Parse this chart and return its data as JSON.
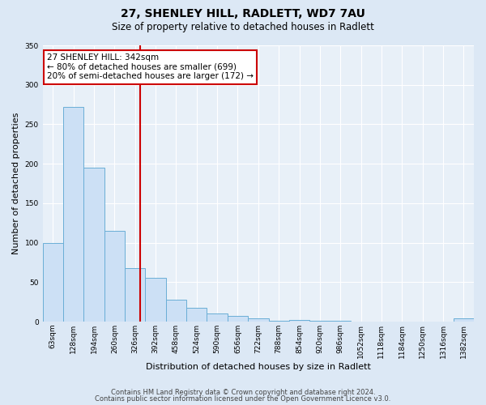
{
  "title": "27, SHENLEY HILL, RADLETT, WD7 7AU",
  "subtitle": "Size of property relative to detached houses in Radlett",
  "xlabel": "Distribution of detached houses by size in Radlett",
  "ylabel": "Number of detached properties",
  "bin_labels": [
    "63sqm",
    "128sqm",
    "194sqm",
    "260sqm",
    "326sqm",
    "392sqm",
    "458sqm",
    "524sqm",
    "590sqm",
    "656sqm",
    "722sqm",
    "788sqm",
    "854sqm",
    "920sqm",
    "986sqm",
    "1052sqm",
    "1118sqm",
    "1184sqm",
    "1250sqm",
    "1316sqm",
    "1382sqm"
  ],
  "bar_values": [
    100,
    272,
    195,
    115,
    68,
    55,
    28,
    17,
    10,
    7,
    4,
    1,
    2,
    1,
    1,
    0,
    0,
    0,
    0,
    0,
    4
  ],
  "bar_color": "#cce0f5",
  "bar_edge_color": "#6aaed6",
  "vline_x_index": 4.25,
  "vline_color": "#cc0000",
  "annotation_text": "27 SHENLEY HILL: 342sqm\n← 80% of detached houses are smaller (699)\n20% of semi-detached houses are larger (172) →",
  "annotation_box_color": "#ffffff",
  "annotation_box_edge": "#cc0000",
  "ylim": [
    0,
    350
  ],
  "yticks": [
    0,
    50,
    100,
    150,
    200,
    250,
    300,
    350
  ],
  "footer1": "Contains HM Land Registry data © Crown copyright and database right 2024.",
  "footer2": "Contains public sector information licensed under the Open Government Licence v3.0.",
  "background_color": "#dce8f5",
  "plot_bg_color": "#e8f0f8",
  "title_fontsize": 10,
  "subtitle_fontsize": 8.5,
  "xlabel_fontsize": 8,
  "ylabel_fontsize": 8,
  "tick_fontsize": 6.5,
  "annot_fontsize": 7.5,
  "footer_fontsize": 6
}
